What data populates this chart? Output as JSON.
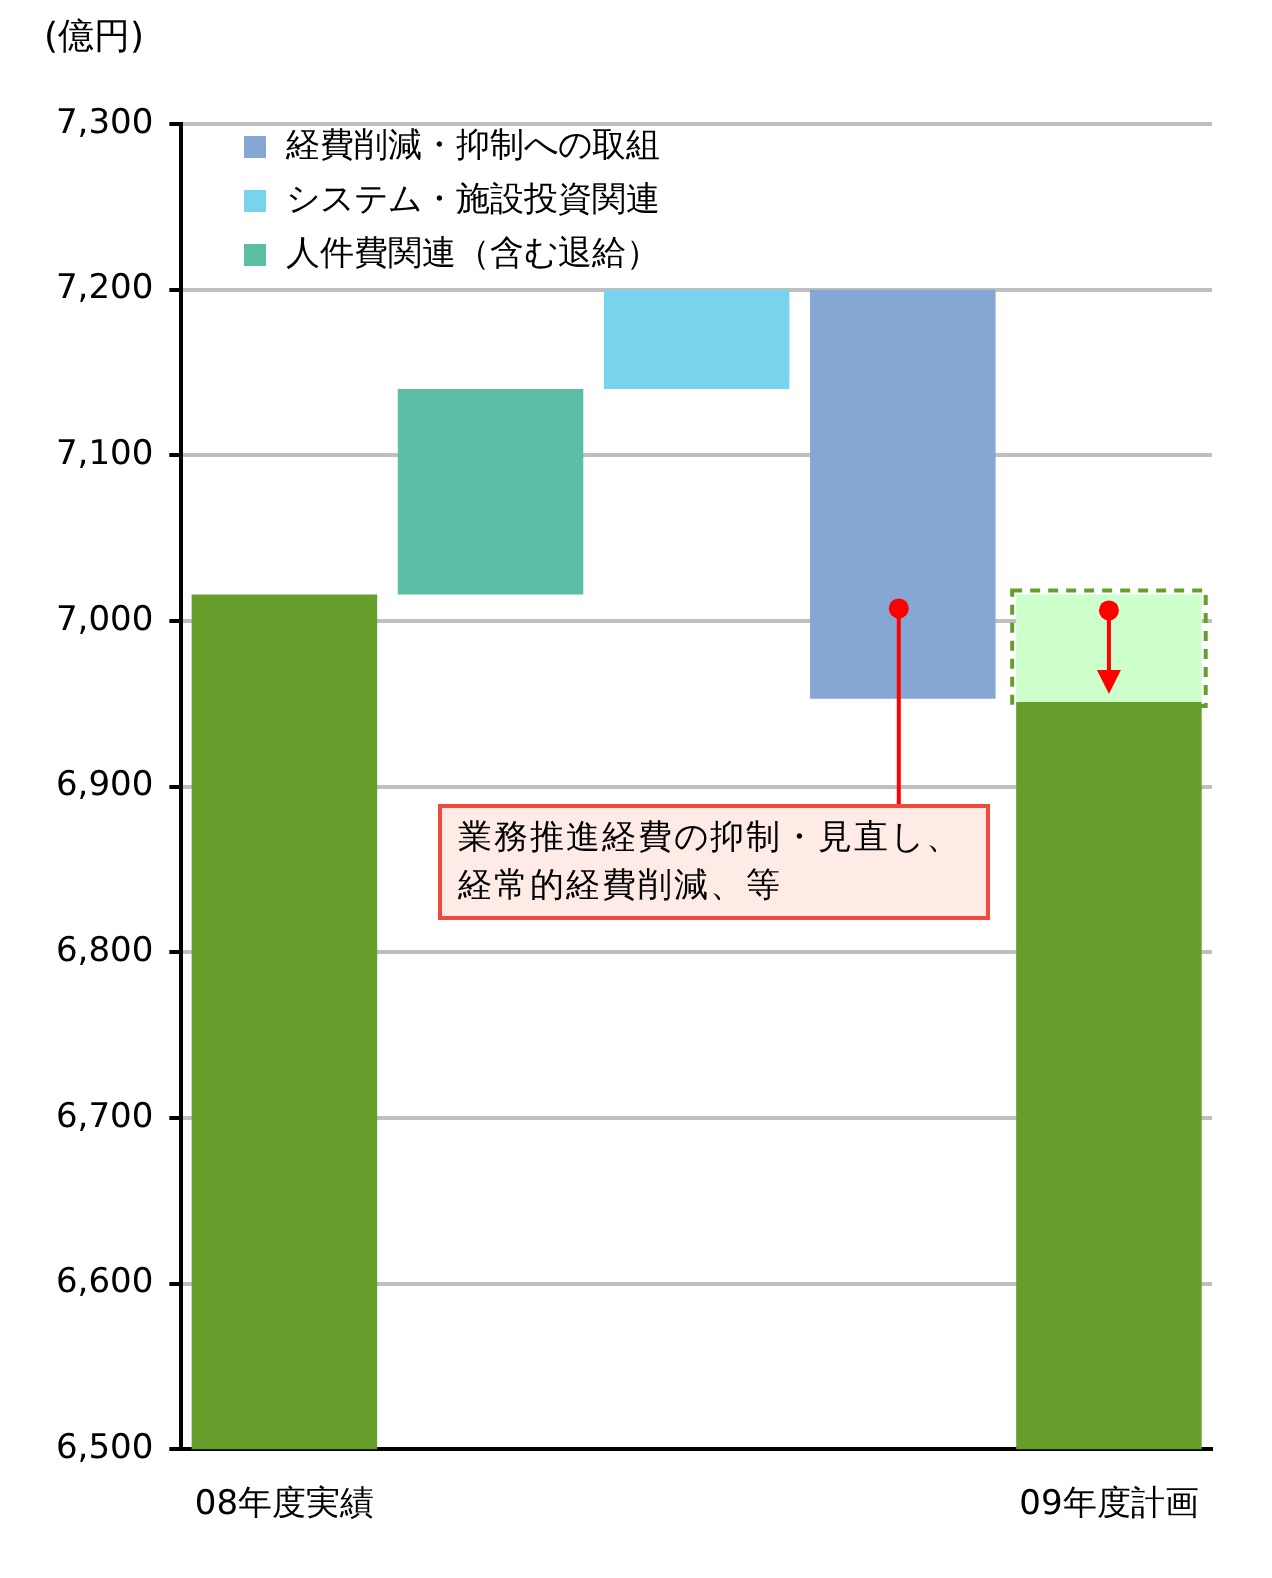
{
  "chart_data": {
    "type": "bar",
    "ylabel": "(億円)",
    "categories": [
      "08年度実績",
      null,
      null,
      null,
      "09年度計画"
    ],
    "series": [
      {
        "name": "経費削減・抑制への取組",
        "color": "#86a6d3",
        "values": [
          null,
          null,
          null,
          -247,
          null
        ],
        "base": [
          null,
          null,
          null,
          7200,
          null
        ]
      },
      {
        "name": "システム・施設投資関連",
        "color": "#77d4ec",
        "values": [
          null,
          null,
          60,
          null,
          null
        ],
        "base": [
          null,
          null,
          7140,
          null,
          null
        ]
      },
      {
        "name": "人件費関連（含む退給）",
        "color": "#5dbea6",
        "values": [
          null,
          124,
          null,
          null,
          null
        ],
        "base": [
          null,
          7016,
          null,
          null,
          null
        ]
      },
      {
        "color": "#669e2b",
        "values": [
          7016,
          null,
          null,
          null,
          6951
        ]
      },
      {
        "color": "#ccffcc",
        "values": [
          null,
          null,
          null,
          null,
          65
        ],
        "base": [
          null,
          null,
          null,
          null,
          6951
        ],
        "line_style": "dashed"
      }
    ],
    "ylim": [
      6500,
      7300
    ],
    "yticks": [
      {
        "value": 6500,
        "label": "6,500"
      },
      {
        "value": 6600,
        "label": "6,600"
      },
      {
        "value": 6700,
        "label": "6,700"
      },
      {
        "value": 6800,
        "label": "6,800"
      },
      {
        "value": 6900,
        "label": "6,900"
      },
      {
        "value": 7000,
        "label": "7,000"
      },
      {
        "value": 7100,
        "label": "7,100"
      },
      {
        "value": 7200,
        "label": "7,200"
      },
      {
        "value": 7300,
        "label": "7,300"
      }
    ],
    "grid": "y",
    "legend": "top left",
    "annotations": [
      "業務推進経費の抑制・見直し、経常的経費削減、等"
    ]
  }
}
